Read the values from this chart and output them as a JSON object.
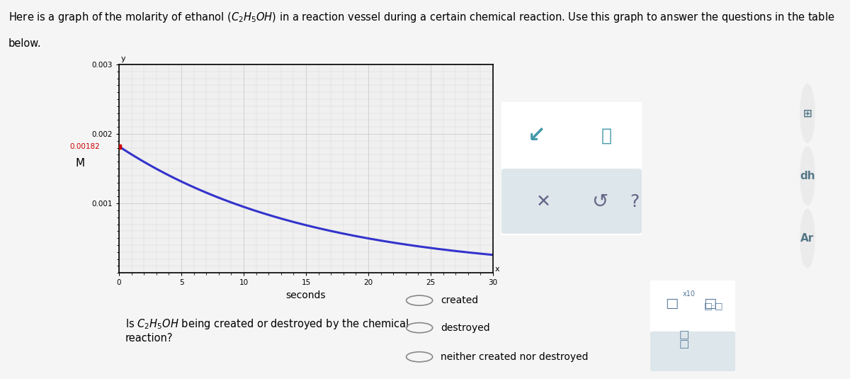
{
  "title_line1": "Here is a graph of the molarity of ethanol $(C_2H_5OH)$ in a reaction vessel during a certain chemical reaction. Use this graph to answer the questions in the table",
  "title_line2": "below.",
  "xlabel": "seconds",
  "ylabel": "M",
  "ylim": [
    0,
    0.003
  ],
  "xlim": [
    0,
    30
  ],
  "yticks": [
    0.001,
    0.002,
    0.003
  ],
  "xticks": [
    0,
    5,
    10,
    15,
    20,
    25,
    30
  ],
  "initial_value": 0.00182,
  "decay_rate": 0.065,
  "line_color": "#3333cc",
  "point_color": "#cc0000",
  "annotation_color": "#cc0000",
  "annotation_text": "0.00182",
  "graph_bg": "#f0f0f0",
  "grid_color": "#cccccc",
  "options": [
    "created",
    "destroyed",
    "neither created nor destroyed"
  ],
  "outer_bg": "#f5f5f5",
  "panel_bg": "#ffffff",
  "icon_panel_bg": "#e8eef0",
  "icon_panel_border": "#c0cdd0",
  "toolbar_bg": "#dde6ea",
  "right_icons_bg": "#f0f0f0"
}
